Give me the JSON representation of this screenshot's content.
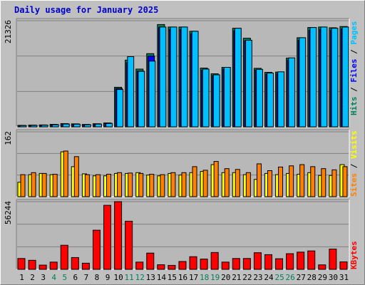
{
  "chart_data": [
    {
      "type": "bar",
      "title": "Daily usage for January 2025",
      "categories": [
        "1",
        "2",
        "3",
        "4",
        "5",
        "6",
        "7",
        "8",
        "9",
        "10",
        "11",
        "12",
        "13",
        "14",
        "15",
        "16",
        "17",
        "18",
        "19",
        "20",
        "21",
        "22",
        "23",
        "24",
        "25",
        "26",
        "27",
        "28",
        "29",
        "30",
        "31"
      ],
      "weekend_categories": [
        "4",
        "5",
        "11",
        "12",
        "18",
        "19",
        "25",
        "26"
      ],
      "ymax_label": "21326",
      "ylim": [
        0,
        21326
      ],
      "series": [
        {
          "name": "Hits",
          "color": "#00805C",
          "values": [
            300,
            350,
            380,
            500,
            650,
            600,
            480,
            620,
            780,
            7950,
            13400,
            11600,
            14700,
            20550,
            20050,
            20050,
            19200,
            11800,
            10650,
            11950,
            19800,
            17800,
            11750,
            10950,
            11000,
            13800,
            17900,
            19950,
            20050,
            19900,
            20150
          ]
        },
        {
          "name": "Files",
          "color": "#0000FF",
          "values": [
            280,
            320,
            360,
            460,
            600,
            560,
            450,
            580,
            720,
            7700,
            12900,
            11200,
            14200,
            20000,
            19550,
            19550,
            18700,
            11400,
            10300,
            11600,
            19300,
            17300,
            11400,
            10600,
            10700,
            13400,
            17400,
            19400,
            19550,
            19400,
            19650
          ]
        },
        {
          "name": "Pages",
          "color": "#00C0FF",
          "values": [
            250,
            300,
            330,
            420,
            560,
            520,
            420,
            540,
            680,
            7500,
            14100,
            11150,
            13200,
            20050,
            20050,
            20050,
            19200,
            11600,
            10450,
            11950,
            19800,
            17400,
            11550,
            10800,
            11050,
            13850,
            17900,
            19950,
            20050,
            19800,
            20050
          ]
        }
      ]
    },
    {
      "type": "bar",
      "ymax_label": "162",
      "ylim": [
        0,
        162
      ],
      "series": [
        {
          "name": "Visits",
          "color": "#FFFF00",
          "values": [
            36,
            55,
            58,
            55,
            112,
            75,
            57,
            52,
            52,
            58,
            58,
            60,
            54,
            52,
            58,
            54,
            60,
            63,
            80,
            60,
            60,
            55,
            43,
            58,
            55,
            58,
            56,
            60,
            53,
            53,
            80
          ]
        },
        {
          "name": "Sites",
          "color": "#FF8000",
          "values": [
            55,
            60,
            58,
            56,
            114,
            100,
            55,
            55,
            56,
            60,
            59,
            58,
            56,
            55,
            60,
            60,
            75,
            66,
            88,
            70,
            68,
            60,
            82,
            65,
            74,
            77,
            80,
            75,
            70,
            67,
            75
          ]
        }
      ]
    },
    {
      "type": "bar",
      "ymax_label": "56244",
      "ylim": [
        0,
        56244
      ],
      "series": [
        {
          "name": "KBytes",
          "color": "#FF0000",
          "values": [
            9000,
            7500,
            3500,
            6000,
            20000,
            9800,
            5100,
            32500,
            53200,
            56244,
            40000,
            6000,
            13500,
            3800,
            3300,
            6500,
            10500,
            8500,
            14000,
            6000,
            9000,
            9000,
            13800,
            12200,
            8800,
            13000,
            14300,
            15300,
            3700,
            16800,
            6200
          ]
        }
      ]
    }
  ]
}
